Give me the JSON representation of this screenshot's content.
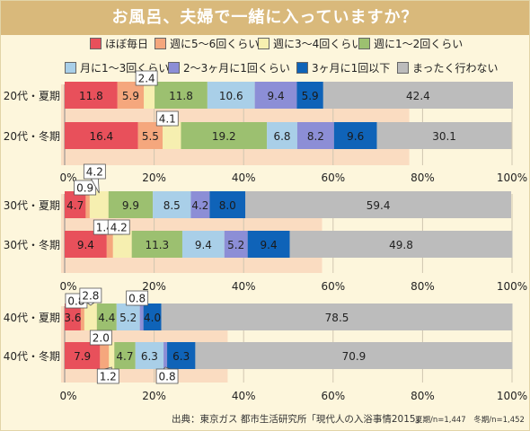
{
  "title": "お風呂、夫婦で一緒に入っていますか？",
  "legend": [
    {
      "label": "ほぼ毎日",
      "color": "#e8505b"
    },
    {
      "label": "週に5～6回くらい",
      "color": "#f5a77d"
    },
    {
      "label": "週に3～4回くらい",
      "color": "#f6efb0"
    },
    {
      "label": "週に1～2回くらい",
      "color": "#9cc070"
    },
    {
      "label": "月に1～3回くらい",
      "color": "#a9cfe8"
    },
    {
      "label": "2～3ヶ月に1回くらい",
      "color": "#8c8ed6"
    },
    {
      "label": "3ヶ月に1回以下",
      "color": "#0f63b8"
    },
    {
      "label": "まったく行わない",
      "color": "#bcbcbc"
    }
  ],
  "source": "出典：東京ガス 都市生活研究所「現代人の入浴事情2015」",
  "n_note": "夏期/n=1,447　冬期/n=1,452",
  "chart_data": {
    "type": "bar",
    "stacked": true,
    "orientation": "horizontal",
    "unit": "%",
    "xlim": [
      0,
      100
    ],
    "xticks": [
      "0%",
      "20%",
      "40%",
      "60%",
      "80%",
      "100%"
    ],
    "series_names": [
      "ほぼ毎日",
      "週に5～6回くらい",
      "週に3～4回くらい",
      "週に1～2回くらい",
      "月に1～3回くらい",
      "2～3ヶ月に1回くらい",
      "3ヶ月に1回以下",
      "まったく行わない"
    ],
    "groups": [
      {
        "rows": [
          {
            "label": "20代・夏期",
            "values": [
              11.8,
              5.9,
              2.4,
              11.8,
              10.6,
              9.4,
              5.9,
              42.4
            ]
          },
          {
            "label": "20代・冬期",
            "values": [
              16.4,
              5.5,
              4.1,
              19.2,
              6.8,
              8.2,
              9.6,
              30.1
            ]
          }
        ]
      },
      {
        "rows": [
          {
            "label": "30代・夏期",
            "values": [
              4.7,
              0.9,
              4.2,
              9.9,
              8.5,
              4.2,
              8.0,
              59.4
            ]
          },
          {
            "label": "30代・冬期",
            "values": [
              9.4,
              1.4,
              4.2,
              11.3,
              9.4,
              5.2,
              9.4,
              49.8
            ]
          }
        ]
      },
      {
        "rows": [
          {
            "label": "40代・夏期",
            "values": [
              3.6,
              0.8,
              2.8,
              4.4,
              5.2,
              0.8,
              4.0,
              78.5
            ]
          },
          {
            "label": "40代・冬期",
            "values": [
              7.9,
              2.0,
              1.2,
              4.7,
              6.3,
              0.8,
              6.3,
              70.9
            ]
          }
        ]
      }
    ]
  }
}
